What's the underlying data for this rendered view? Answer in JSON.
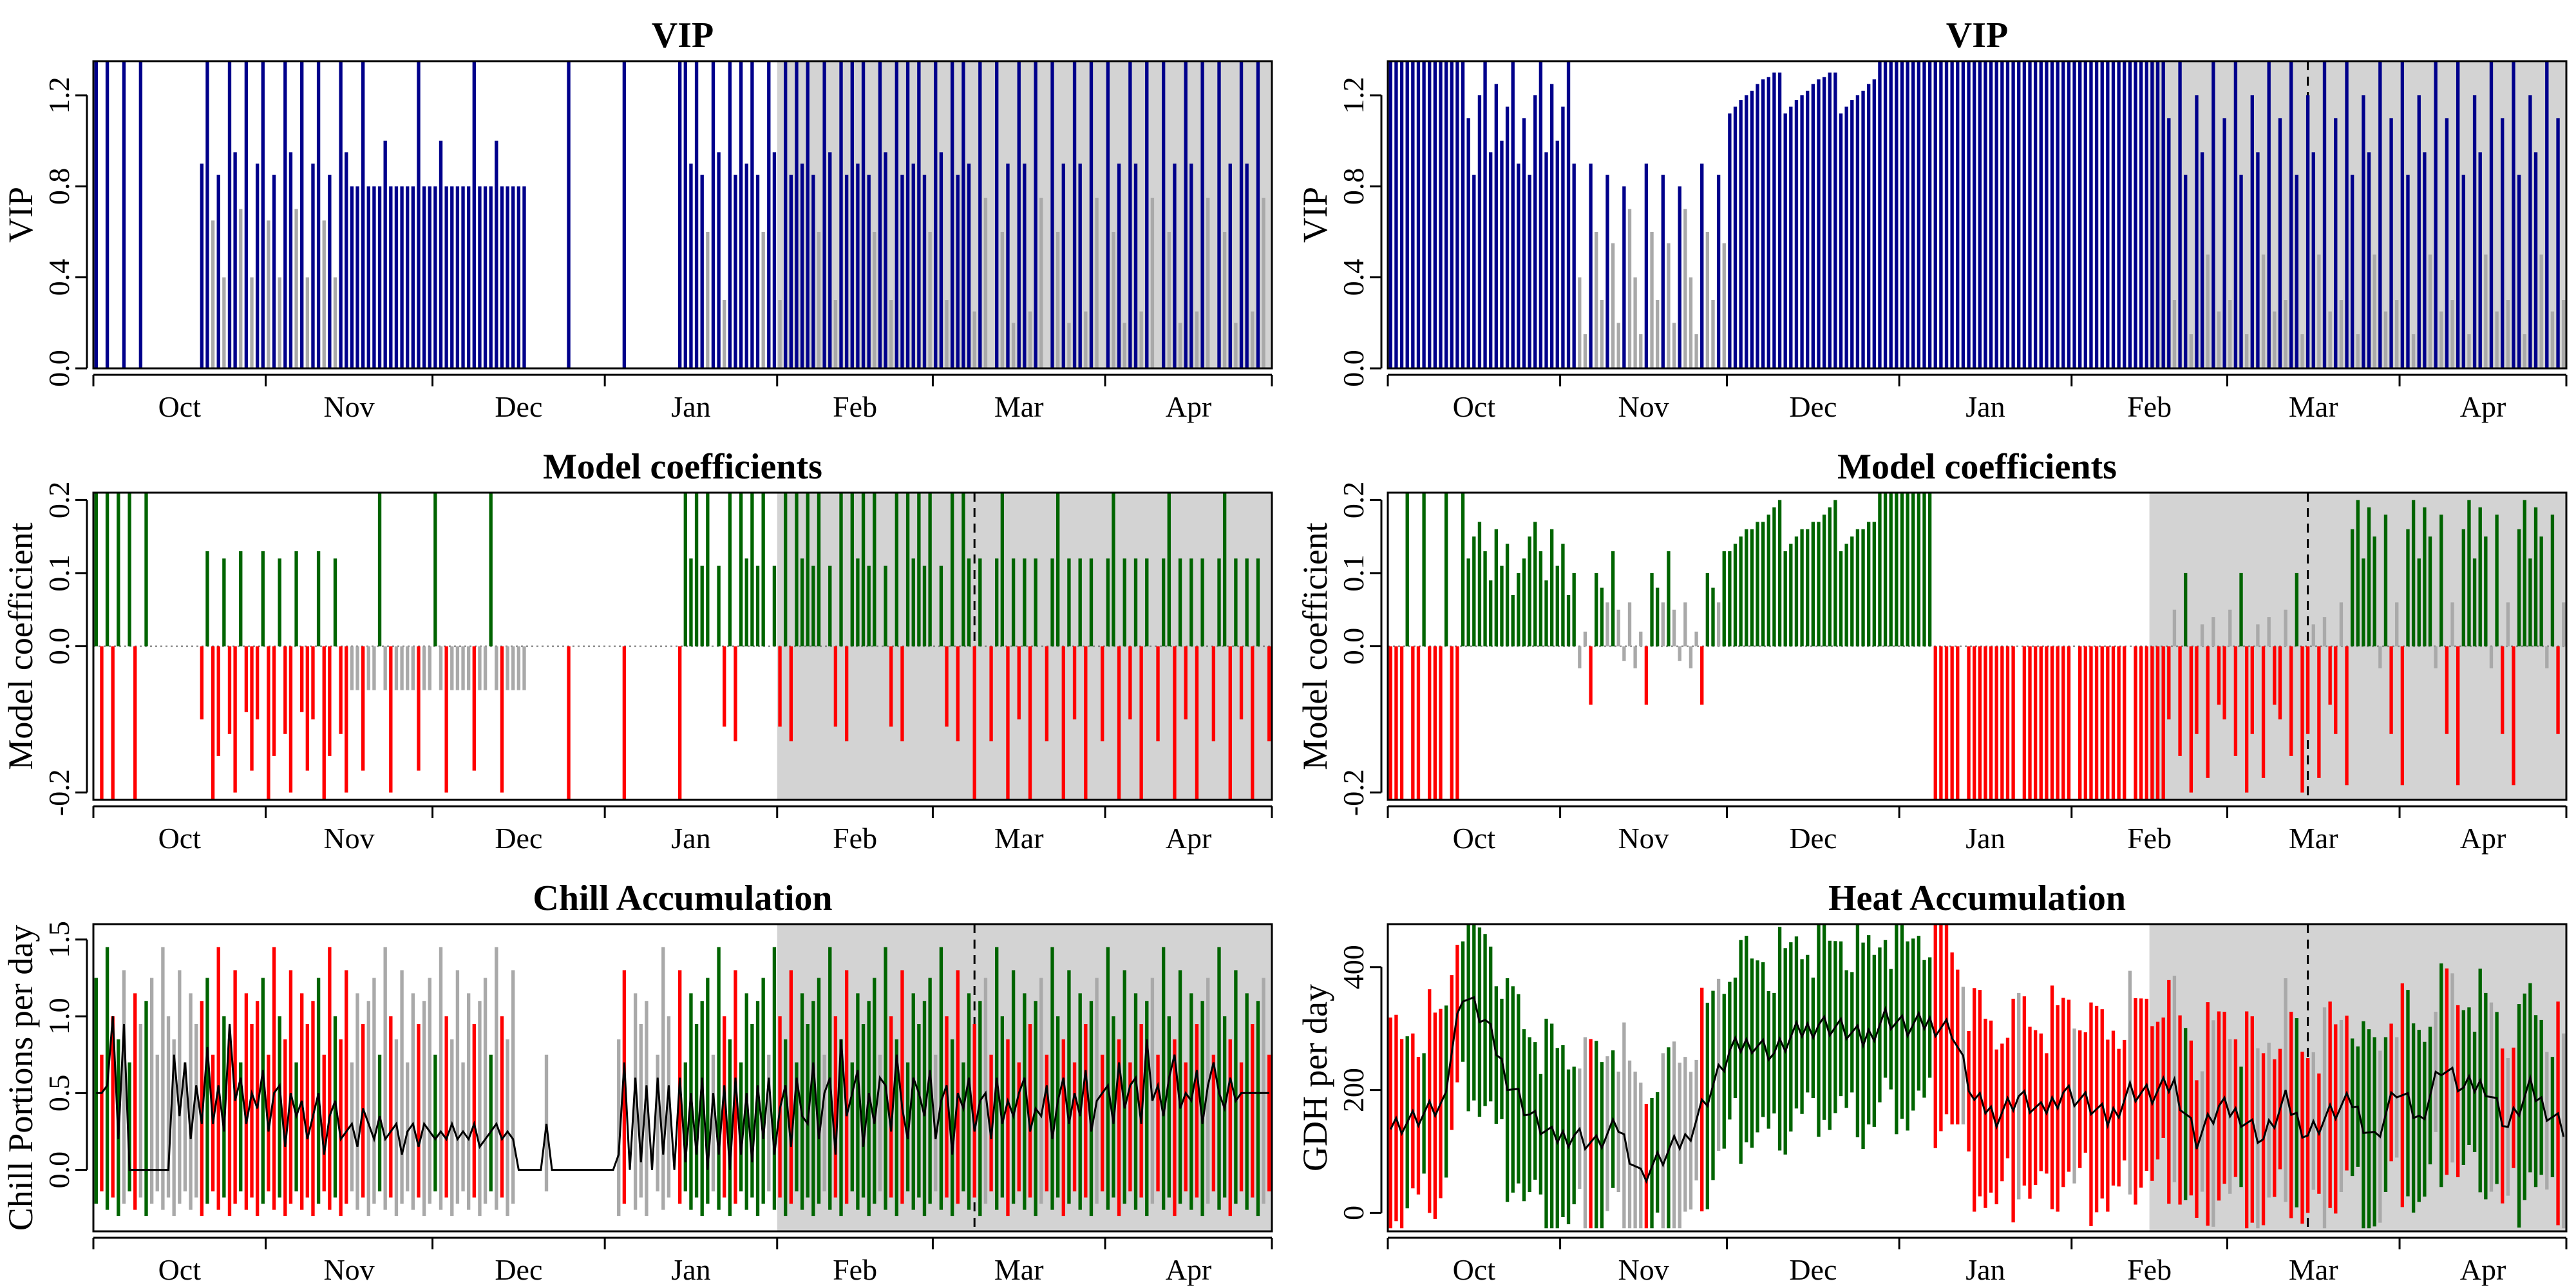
{
  "months": [
    "Oct",
    "Nov",
    "Dec",
    "Jan",
    "Feb",
    "Mar",
    "Apr"
  ],
  "colors": {
    "vip_high": "#00008b",
    "vip_low": "#a9a9a9",
    "positive": "#006400",
    "negative": "#ff0000",
    "neutral": "#a9a9a9",
    "shade": "#d3d3d3",
    "mean_line": "#000000"
  },
  "chart_data": [
    {
      "type": "bar",
      "panel": "left-top",
      "title": "VIP",
      "ylabel": "VIP",
      "ylim": [
        0,
        1.35
      ],
      "yticks": [
        "0.0",
        "0.4",
        "0.8",
        "1.2"
      ],
      "yvals": [
        0,
        0.4,
        0.8,
        1.2
      ],
      "shaded_period": [
        "2/1",
        "4/30"
      ],
      "dashed_marker": null,
      "segments": [
        {
          "from": 1,
          "to": 10,
          "pattern": [
            1.35,
            0,
            1.35,
            0,
            0,
            1.35,
            0,
            0,
            1.35,
            0
          ]
        },
        {
          "from": 20,
          "to": 46,
          "pattern": [
            0.9,
            1.35,
            0.65,
            0.85,
            0.4,
            1.35,
            0.95,
            0.7,
            1.35,
            0.4
          ]
        },
        {
          "from": 47,
          "to": 78,
          "pattern": [
            0.8,
            0.8,
            1.35,
            0.8,
            0.8,
            0.8,
            1.0,
            0.8,
            0.8,
            0.8
          ]
        },
        {
          "from": 80,
          "to": 106,
          "pattern": [
            0,
            0,
            0,
            0,
            0,
            0,
            1.35,
            0,
            0,
            0
          ]
        },
        {
          "from": 107,
          "to": 157,
          "pattern": [
            1.35,
            0.9,
            1.35,
            0.85,
            0.6,
            1.35,
            0.95,
            0.3,
            1.35,
            0.85
          ]
        },
        {
          "from": 158,
          "to": 212,
          "pattern": [
            0.9,
            0.25,
            1.35,
            0.75,
            0,
            1.35,
            0.6,
            0.9,
            0.2,
            1.35
          ]
        }
      ],
      "threshold": 0.8
    },
    {
      "type": "bar",
      "panel": "right-top",
      "title": "VIP",
      "ylabel": "VIP",
      "ylim": [
        0,
        1.35
      ],
      "yticks": [
        "0.0",
        "0.4",
        "0.8",
        "1.2"
      ],
      "yvals": [
        0,
        0.4,
        0.8,
        1.2
      ],
      "shaded_period": [
        "2/15",
        "4/30"
      ],
      "dashed_marker": "3/15",
      "segments": [
        {
          "from": 1,
          "to": 14,
          "pattern": [
            1.35,
            1.35,
            1.35,
            1.35,
            1.35,
            1.35,
            1.35
          ]
        },
        {
          "from": 15,
          "to": 34,
          "pattern": [
            1.1,
            0.85,
            1.2,
            1.35,
            0.95,
            1.25,
            1.0,
            1.15,
            1.35,
            0.9
          ]
        },
        {
          "from": 35,
          "to": 61,
          "pattern": [
            0.4,
            0.15,
            0.9,
            0.6,
            0.3,
            0.85,
            0.55,
            0.2,
            0.8,
            0.7
          ]
        },
        {
          "from": 62,
          "to": 88,
          "pattern": [
            1.12,
            1.15,
            1.18,
            1.2,
            1.22,
            1.25,
            1.27,
            1.28,
            1.3,
            1.3
          ]
        },
        {
          "from": 89,
          "to": 140,
          "pattern": [
            1.35,
            1.35,
            1.35,
            1.35,
            1.35,
            1.35,
            1.35,
            1.35
          ]
        },
        {
          "from": 141,
          "to": 212,
          "pattern": [
            1.1,
            0.3,
            1.35,
            0.85,
            0.15,
            1.2,
            0.95,
            0.5,
            1.35,
            0.25
          ]
        }
      ],
      "threshold": 0.8
    },
    {
      "type": "bar",
      "panel": "left-middle",
      "title": "Model coefficients",
      "ylabel": "Model coefficient",
      "ylim": [
        -0.21,
        0.21
      ],
      "yticks": [
        "-0.2",
        "0.0",
        "0.1",
        "0.2"
      ],
      "yvals": [
        -0.2,
        0,
        0.1,
        0.2
      ],
      "shaded_period": [
        "2/1",
        "4/30"
      ],
      "dashed_marker": "3/8",
      "segments": [
        {
          "from": 1,
          "to": 10,
          "pattern": [
            0.21,
            -0.21,
            0.21,
            -0.21,
            0.21,
            0,
            0.21,
            -0.21,
            0,
            0.21
          ]
        },
        {
          "from": 20,
          "to": 46,
          "pattern": [
            -0.1,
            0.13,
            -0.21,
            -0.15,
            0.12,
            -0.12,
            -0.2,
            0.13,
            -0.09,
            -0.17
          ]
        },
        {
          "from": 47,
          "to": 78,
          "pattern": [
            -0.06,
            -0.06,
            -0.17,
            -0.06,
            -0.06,
            0.21,
            -0.06,
            -0.2,
            -0.06,
            -0.06
          ]
        },
        {
          "from": 80,
          "to": 106,
          "pattern": [
            0,
            0,
            0,
            0,
            0,
            0,
            -0.21,
            0,
            0,
            0
          ]
        },
        {
          "from": 107,
          "to": 157,
          "pattern": [
            0.21,
            0.12,
            0.21,
            0.11,
            0.21,
            0,
            0.11,
            -0.11,
            0.21,
            -0.13
          ]
        },
        {
          "from": 158,
          "to": 212,
          "pattern": [
            0.12,
            -0.21,
            0.12,
            0,
            -0.13,
            0.12,
            0.21,
            -0.21,
            0.12,
            -0.1
          ]
        }
      ]
    },
    {
      "type": "bar",
      "panel": "right-middle",
      "title": "Model coefficients",
      "ylabel": "Model coefficient",
      "ylim": [
        -0.21,
        0.21
      ],
      "yticks": [
        "-0.2",
        "0.0",
        "0.1",
        "0.2"
      ],
      "yvals": [
        -0.2,
        0,
        0.1,
        0.2
      ],
      "shaded_period": [
        "2/15",
        "4/30"
      ],
      "dashed_marker": "3/15",
      "segments": [
        {
          "from": 1,
          "to": 14,
          "pattern": [
            -0.21,
            -0.21,
            -0.21,
            0.21,
            -0.21,
            -0.21,
            0.21
          ]
        },
        {
          "from": 15,
          "to": 34,
          "pattern": [
            0.12,
            0.15,
            0.17,
            0.13,
            0.09,
            0.16,
            0.11,
            0.14,
            0.07,
            0.1
          ]
        },
        {
          "from": 35,
          "to": 61,
          "pattern": [
            -0.03,
            0.02,
            -0.08,
            0.1,
            0.08,
            0.06,
            0.13,
            0.05,
            -0.02,
            0.06
          ]
        },
        {
          "from": 62,
          "to": 88,
          "pattern": [
            0.13,
            0.14,
            0.15,
            0.16,
            0.16,
            0.17,
            0.17,
            0.18,
            0.19,
            0.2
          ]
        },
        {
          "from": 89,
          "to": 98,
          "pattern": [
            0.21,
            0.21,
            0.21,
            0.21,
            0.21
          ]
        },
        {
          "from": 99,
          "to": 140,
          "pattern": [
            -0.21,
            -0.21,
            -0.21,
            -0.21,
            -0.21,
            0,
            -0.21,
            -0.21,
            -0.21,
            -0.21
          ]
        },
        {
          "from": 141,
          "to": 170,
          "pattern": [
            -0.1,
            0.05,
            -0.15,
            0.1,
            -0.2,
            -0.12,
            0.03,
            -0.18,
            0.04,
            -0.08
          ]
        },
        {
          "from": 171,
          "to": 212,
          "pattern": [
            -0.12,
            0.06,
            -0.19,
            0.16,
            0.2,
            0.12,
            0.19,
            0.15,
            -0.03,
            0.18
          ]
        }
      ]
    },
    {
      "type": "line",
      "panel": "left-bottom",
      "title": "Chill Accumulation",
      "ylabel": "Chill Portions per day",
      "ylim": [
        -0.4,
        1.6
      ],
      "yticks": [
        "0.0",
        "0.5",
        "1.0",
        "1.5"
      ],
      "yvals": [
        0,
        0.5,
        1.0,
        1.5
      ],
      "shaded_period": [
        "2/1",
        "4/30"
      ],
      "dashed_marker": "3/8",
      "range_bars": {
        "low": -0.3,
        "high_pattern": [
          1.1,
          1.25,
          0.75,
          1.45,
          1.0,
          0.85,
          1.3,
          0.7,
          1.15,
          0.95
        ]
      },
      "mean_line": [
        0.5,
        0.5,
        0.55,
        1.0,
        0.2,
        0.95,
        0,
        0,
        0,
        0,
        0,
        0,
        0,
        0,
        0.75,
        0.35,
        0.7,
        0.2,
        0.55,
        0.3,
        0.8,
        0.3,
        0.55,
        0.25,
        0.95,
        0.45,
        0.6,
        0.3,
        0.5,
        0.4,
        0.65,
        0.25,
        0.5,
        0.55,
        0.15,
        0.5,
        0.35,
        0.45,
        0.2,
        0.35,
        0.5,
        0.1,
        0.35,
        0.45,
        0.2,
        0.25,
        0.3,
        0.15,
        0.4,
        0.3,
        0.2,
        0.35,
        0.2,
        0.25,
        0.3,
        0.1,
        0.25,
        0.3,
        0.15,
        0.3,
        0.25,
        0.2,
        0.25,
        0.2,
        0.3,
        0.2,
        0.25,
        0.2,
        0.3,
        0.15,
        0.2,
        0.25,
        0.3,
        0.2,
        0.25,
        0.2,
        0,
        0,
        0,
        0,
        0,
        0.3,
        0,
        0,
        0,
        0,
        0,
        0,
        0,
        0,
        0,
        0,
        0,
        0,
        0.1,
        0.7,
        0,
        0.6,
        0.05,
        0.55,
        0,
        0.6,
        0.1,
        0.55,
        0,
        0.6,
        0.05,
        0.5,
        0.1,
        0.6,
        0,
        0.5,
        0.1,
        0.55,
        0,
        0.6,
        0.1,
        0.5,
        0.05,
        0.55,
        0.2,
        0.6,
        0.1,
        0.4,
        0.55,
        0.15,
        0.6,
        0.35,
        0.3,
        0.7,
        0.2,
        0.5,
        0.6,
        0.1,
        0.85,
        0.35,
        0.5,
        0.65,
        0.15,
        0.5,
        0.3,
        0.6,
        0.55,
        0.25,
        0.75,
        0.4,
        0.2,
        0.6,
        0.5,
        0.35,
        0.65,
        0.2,
        0.45,
        0.55,
        0.1,
        0.5,
        0.4,
        0.6,
        0.25,
        0.45,
        0.5,
        0.2,
        0.6,
        0.3,
        0.45,
        0.35,
        0.5,
        0.6,
        0.25,
        0.4,
        0.35,
        0.55,
        0.2,
        0.45,
        0.6,
        0.3,
        0.5,
        0.35,
        0.65,
        0.25,
        0.45,
        0.5,
        0.55,
        0.3,
        0.7,
        0.4,
        0.55,
        0.6,
        0.3,
        0.85,
        0.45,
        0.55,
        0.35,
        0.6,
        0.75,
        0.4,
        0.5,
        0.45,
        0.65,
        0.3,
        0.55,
        0.7,
        0.5,
        0.4,
        0.6,
        0.45,
        0.5
      ]
    },
    {
      "type": "line",
      "panel": "right-bottom",
      "title": "Heat Accumulation",
      "ylabel": "GDH per day",
      "ylim": [
        -30,
        470
      ],
      "yticks": [
        "0",
        "200",
        "400"
      ],
      "yvals": [
        0,
        200,
        400
      ],
      "shaded_period": [
        "2/15",
        "4/30"
      ],
      "dashed_marker": "3/15",
      "range_bars": {
        "spread": 140
      },
      "mean_line_anchors": [
        [
          1,
          140
        ],
        [
          5,
          150
        ],
        [
          10,
          170
        ],
        [
          14,
          360
        ],
        [
          18,
          310
        ],
        [
          22,
          220
        ],
        [
          26,
          160
        ],
        [
          30,
          120
        ],
        [
          34,
          130
        ],
        [
          38,
          110
        ],
        [
          42,
          140
        ],
        [
          46,
          60
        ],
        [
          50,
          90
        ],
        [
          54,
          120
        ],
        [
          58,
          190
        ],
        [
          62,
          260
        ],
        [
          66,
          280
        ],
        [
          70,
          260
        ],
        [
          74,
          290
        ],
        [
          78,
          310
        ],
        [
          82,
          300
        ],
        [
          86,
          280
        ],
        [
          90,
          320
        ],
        [
          94,
          300
        ],
        [
          98,
          310
        ],
        [
          102,
          300
        ],
        [
          106,
          180
        ],
        [
          110,
          160
        ],
        [
          114,
          190
        ],
        [
          118,
          160
        ],
        [
          122,
          200
        ],
        [
          126,
          180
        ],
        [
          130,
          150
        ],
        [
          134,
          200
        ],
        [
          138,
          190
        ],
        [
          142,
          210
        ],
        [
          146,
          120
        ],
        [
          150,
          170
        ],
        [
          154,
          160
        ],
        [
          158,
          120
        ],
        [
          162,
          180
        ],
        [
          166,
          130
        ],
        [
          170,
          160
        ],
        [
          174,
          180
        ],
        [
          178,
          120
        ],
        [
          182,
          200
        ],
        [
          186,
          150
        ],
        [
          190,
          240
        ],
        [
          194,
          200
        ],
        [
          198,
          210
        ],
        [
          202,
          140
        ],
        [
          206,
          200
        ],
        [
          210,
          160
        ],
        [
          212,
          140
        ]
      ]
    }
  ]
}
